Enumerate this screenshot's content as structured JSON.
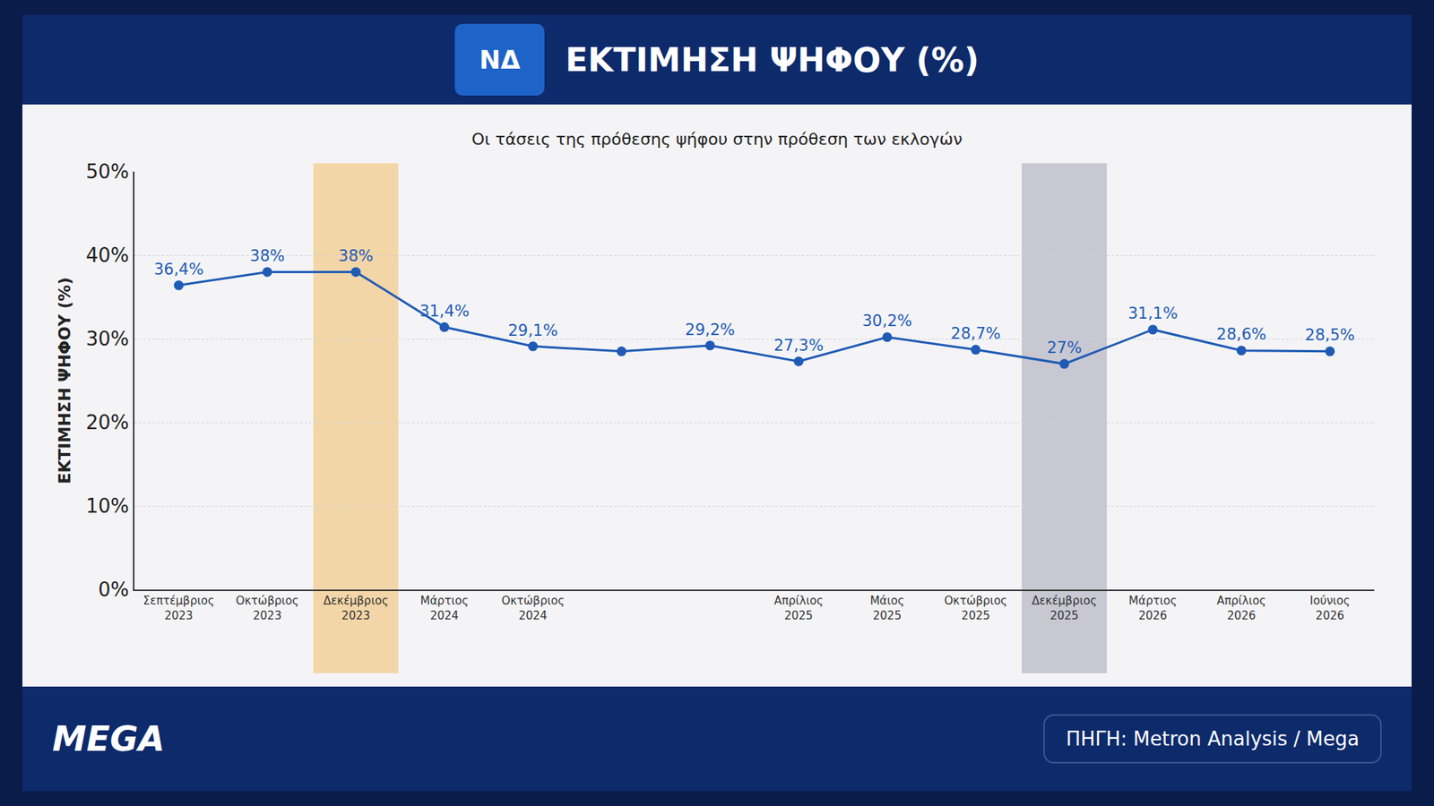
{
  "chart_data": {
    "type": "line",
    "logo": "ΝΔ",
    "title": "ΕΚΤΙΜΗΣΗ ΨΗΦΟΥ (%)",
    "subtitle": "Οι τάσεις της πρόθεσης ψήφου στην πρόθεση των εκλογών",
    "y_label": "ΕΚΤΙΜΗΣΗ ΨΗΦΟΥ (%)",
    "brand": "MEGA",
    "source": "ΠΗΓΗ: Metron Analysis / Mega",
    "categories": [
      "Σεπτέμβριος 2023",
      "Οκτώβριος 2023",
      "Δεκέμβριος 2023",
      "Μάρτιος 2024",
      "Οκτώβριος 2024",
      null,
      null,
      "Απρίλιος 2025",
      "Μάιος 2025",
      "Οκτώβριος 2025",
      "Δεκέμβριος 2025",
      "Μάρτιος 2026",
      "Απρίλιος 2026",
      "Ιούνιος 2026"
    ],
    "values": [
      36.4,
      38,
      38,
      31.4,
      29.1,
      28.5,
      29.2,
      27.3,
      30.2,
      28.7,
      27,
      31.1,
      28.6,
      28.5
    ],
    "value_labels": [
      "36,4%",
      "38%",
      "38%",
      "31,4%",
      "29,1%",
      null,
      "29,2%",
      "27,3%",
      "30,2%",
      "28,7%",
      "27%",
      "31,1%",
      "28,6%",
      "28,5%"
    ],
    "data_labels": true,
    "color": "#1f5bb5",
    "marker": "circle",
    "highlights": [
      {
        "category": "Δεκέμβριος 2023",
        "color": "#f3d6a8"
      },
      {
        "category": "Δεκέμβριος 2025",
        "color": "#c8c8d2"
      }
    ],
    "ylim": [
      0,
      50
    ],
    "yticks": [
      {
        "value": 0,
        "label": "0%"
      },
      {
        "value": 10,
        "label": "10%"
      },
      {
        "value": 20,
        "label": "20%"
      },
      {
        "value": 30,
        "label": "30%"
      },
      {
        "value": 40,
        "label": "40%"
      },
      {
        "value": 50,
        "label": "50%"
      }
    ],
    "grid": true
  }
}
